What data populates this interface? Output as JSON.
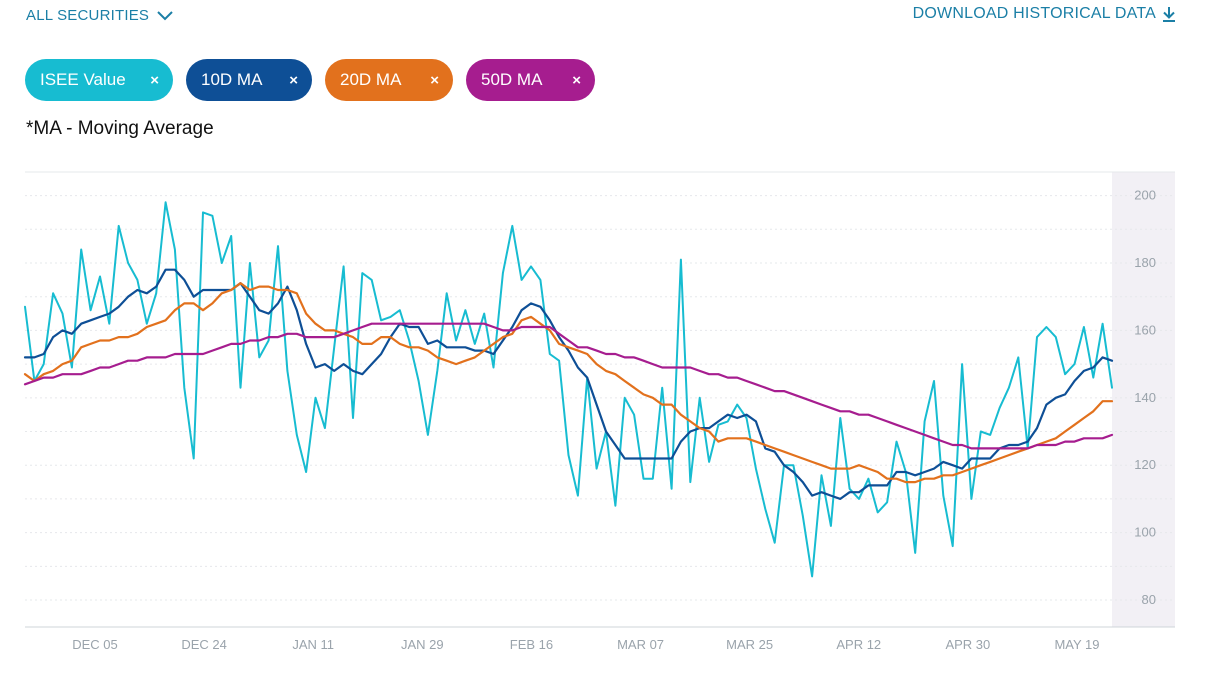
{
  "header": {
    "securities_label": "ALL SECURITIES",
    "download_label": "DOWNLOAD HISTORICAL DATA"
  },
  "chips": [
    {
      "label": "ISEE Value",
      "color": "#17bcd1",
      "close": "×"
    },
    {
      "label": "10D MA",
      "color": "#0e4f96",
      "close": "×"
    },
    {
      "label": "20D MA",
      "color": "#e2711d",
      "close": "×"
    },
    {
      "label": "50D MA",
      "color": "#a61d8f",
      "close": "×"
    }
  ],
  "note": "*MA - Moving Average",
  "chart_data": {
    "type": "line",
    "title": "",
    "xlabel": "",
    "ylabel": "",
    "ylim": [
      72,
      207
    ],
    "yticks": [
      80,
      100,
      120,
      140,
      160,
      180,
      200
    ],
    "x_tick_labels": [
      "DEC 05",
      "DEC 24",
      "JAN 11",
      "JAN 29",
      "FEB 16",
      "MAR 07",
      "MAR 25",
      "APR 12",
      "APR 30",
      "MAY 19"
    ],
    "grid": true,
    "legend": "top-left",
    "series": [
      {
        "name": "ISEE Value",
        "color": "#17bcd1",
        "values": [
          167,
          145,
          150,
          171,
          165,
          149,
          184,
          166,
          176,
          162,
          191,
          180,
          175,
          162,
          171,
          198,
          184,
          143,
          122,
          195,
          194,
          180,
          188,
          143,
          180,
          152,
          157,
          185,
          148,
          129,
          118,
          140,
          131,
          155,
          179,
          134,
          177,
          175,
          163,
          164,
          166,
          157,
          145,
          129,
          148,
          171,
          157,
          166,
          156,
          165,
          149,
          177,
          191,
          175,
          179,
          175,
          153,
          151,
          123,
          111,
          146,
          119,
          130,
          108,
          140,
          135,
          116,
          116,
          143,
          113,
          181,
          115,
          140,
          121,
          132,
          133,
          138,
          134,
          119,
          107,
          97,
          120,
          120,
          105,
          87,
          117,
          102,
          134,
          113,
          110,
          116,
          106,
          109,
          127,
          118,
          94,
          133,
          145,
          111,
          96,
          150,
          110,
          130,
          129,
          137,
          143,
          152,
          125,
          158,
          161,
          158,
          147,
          150,
          161,
          146,
          162,
          143
        ]
      },
      {
        "name": "10D MA",
        "color": "#0e4f96",
        "values": [
          152,
          152,
          153,
          158,
          160,
          159,
          162,
          163,
          164,
          165,
          167,
          170,
          172,
          171,
          173,
          178,
          178,
          175,
          170,
          172,
          172,
          172,
          172,
          174,
          170,
          166,
          165,
          168,
          173,
          166,
          156,
          149,
          150,
          148,
          150,
          148,
          147,
          150,
          153,
          158,
          162,
          161,
          161,
          156,
          157,
          155,
          155,
          155,
          154,
          154,
          153,
          157,
          161,
          166,
          168,
          167,
          163,
          158,
          154,
          149,
          146,
          138,
          130,
          126,
          122,
          122,
          122,
          122,
          122,
          122,
          127,
          130,
          131,
          131,
          133,
          135,
          134,
          135,
          133,
          125,
          124,
          120,
          118,
          115,
          111,
          112,
          111,
          110,
          112,
          112,
          114,
          114,
          114,
          118,
          118,
          117,
          118,
          119,
          121,
          120,
          119,
          122,
          122,
          122,
          125,
          126,
          126,
          127,
          131,
          138,
          140,
          141,
          145,
          148,
          149,
          152,
          151
        ]
      },
      {
        "name": "20D MA",
        "color": "#e2711d",
        "values": [
          147,
          145,
          147,
          148,
          150,
          151,
          155,
          156,
          157,
          157,
          158,
          158,
          159,
          161,
          162,
          163,
          166,
          168,
          168,
          166,
          168,
          171,
          172,
          174,
          172,
          173,
          173,
          172,
          172,
          171,
          165,
          162,
          160,
          160,
          159,
          158,
          156,
          156,
          158,
          158,
          156,
          155,
          155,
          154,
          152,
          151,
          150,
          151,
          152,
          154,
          156,
          158,
          159,
          163,
          164,
          162,
          160,
          156,
          155,
          154,
          153,
          150,
          148,
          147,
          145,
          143,
          141,
          140,
          138,
          138,
          135,
          133,
          131,
          130,
          127,
          128,
          128,
          128,
          127,
          126,
          125,
          124,
          123,
          122,
          121,
          120,
          119,
          119,
          119,
          120,
          119,
          118,
          116,
          116,
          115,
          115,
          116,
          116,
          117,
          117,
          118,
          119,
          120,
          121,
          122,
          123,
          124,
          125,
          126,
          127,
          128,
          130,
          132,
          134,
          136,
          139,
          139
        ]
      },
      {
        "name": "50D MA",
        "color": "#a61d8f",
        "values": [
          144,
          145,
          146,
          146,
          147,
          147,
          147,
          148,
          149,
          149,
          150,
          151,
          151,
          152,
          152,
          152,
          153,
          153,
          153,
          153,
          154,
          155,
          156,
          156,
          157,
          157,
          158,
          158,
          159,
          159,
          158,
          158,
          158,
          158,
          159,
          160,
          161,
          162,
          162,
          162,
          162,
          162,
          162,
          162,
          162,
          162,
          162,
          162,
          162,
          162,
          161,
          160,
          160,
          161,
          161,
          161,
          161,
          159,
          157,
          155,
          155,
          154,
          153,
          153,
          152,
          152,
          151,
          150,
          149,
          149,
          149,
          149,
          148,
          147,
          147,
          146,
          146,
          145,
          144,
          143,
          142,
          142,
          141,
          140,
          139,
          138,
          137,
          136,
          136,
          135,
          135,
          134,
          133,
          132,
          131,
          130,
          129,
          128,
          127,
          126,
          126,
          125,
          125,
          125,
          125,
          125,
          125,
          125,
          126,
          126,
          126,
          127,
          127,
          128,
          128,
          128,
          129
        ]
      }
    ]
  }
}
